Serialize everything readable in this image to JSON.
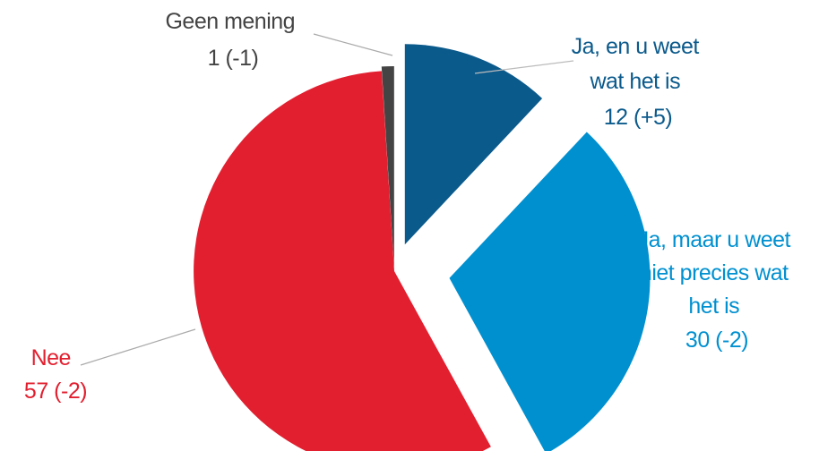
{
  "chart_data": {
    "type": "pie",
    "title": "",
    "slices": [
      {
        "key": "geen",
        "label_lines": [
          "Geen mening",
          "1 (-1)"
        ],
        "value": 1,
        "change": "-1",
        "color": "#444444",
        "label_color": "#444444",
        "leader_color": "#aaaaaa"
      },
      {
        "key": "ja_weet",
        "label_lines": [
          "Ja, en u weet",
          "wat het is",
          "12 (+5)"
        ],
        "value": 12,
        "change": "+5",
        "color": "#0b5a8c",
        "label_color": "#0b5a8c",
        "leader_color": "#bbbbbb"
      },
      {
        "key": "ja_niet",
        "label_lines": [
          "Ja, maar u weet",
          "niet precies wat",
          "het is",
          "30 (-2)"
        ],
        "value": 30,
        "change": "-2",
        "color": "#0090d0",
        "label_color": "#0090d0",
        "leader_color": "#bbbbbb"
      },
      {
        "key": "nee",
        "label_lines": [
          "Nee",
          "57  (-2)"
        ],
        "value": 57,
        "change": "-2",
        "color": "#e21f2f",
        "label_color": "#e21f2f",
        "leader_color": "#aaaaaa"
      }
    ]
  }
}
